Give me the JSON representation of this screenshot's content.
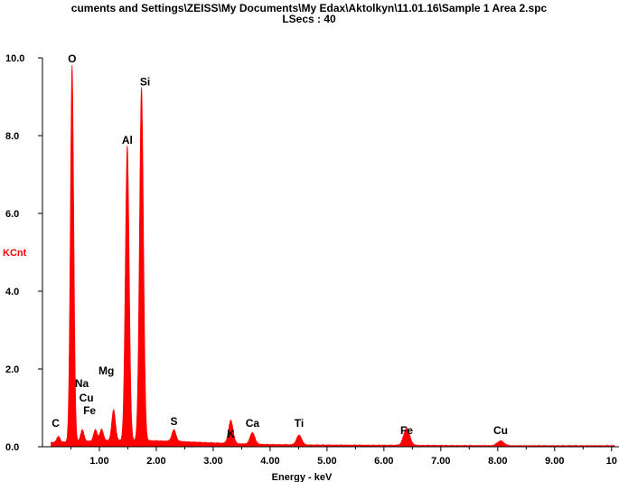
{
  "chart_data": {
    "type": "line",
    "title": "cuments and Settings\\ZEISS\\My Documents\\My Edax\\Aktolkyn\\11.01.16\\Sample 1 Area 2.spc",
    "subtitle": "LSecs : 40",
    "xlabel": "Energy - keV",
    "ylabel": "KCnt",
    "xlim": [
      0,
      10
    ],
    "ylim": [
      0,
      10
    ],
    "series_color": "#ff0000",
    "axis_color": "#000000",
    "ylabel_color": "#ff0000",
    "y_ticks": [
      {
        "value": 0,
        "label": "0.0"
      },
      {
        "value": 2,
        "label": "2.0"
      },
      {
        "value": 4,
        "label": "4.0"
      },
      {
        "value": 6,
        "label": "6.0"
      },
      {
        "value": 8,
        "label": "8.0"
      },
      {
        "value": 10,
        "label": "10.0"
      }
    ],
    "x_ticks": [
      {
        "value": 1,
        "label": "1.00"
      },
      {
        "value": 2,
        "label": "2.00"
      },
      {
        "value": 3,
        "label": "3.00"
      },
      {
        "value": 4,
        "label": "4.00"
      },
      {
        "value": 5,
        "label": "5.00"
      },
      {
        "value": 6,
        "label": "6.00"
      },
      {
        "value": 7,
        "label": "7.00"
      },
      {
        "value": 8,
        "label": "8.00"
      },
      {
        "value": 9,
        "label": "9.00"
      },
      {
        "value": 10,
        "label": "10"
      }
    ],
    "peaks": [
      {
        "element": "C",
        "energy": 0.28,
        "height": 0.15
      },
      {
        "element": "O",
        "energy": 0.52,
        "height": 9.7
      },
      {
        "element": "Fe",
        "energy": 0.7,
        "height": 0.3
      },
      {
        "element": "Cu",
        "energy": 0.93,
        "height": 0.3
      },
      {
        "element": "Na",
        "energy": 1.04,
        "height": 0.3
      },
      {
        "element": "Mg",
        "energy": 1.25,
        "height": 0.8
      },
      {
        "element": "Al",
        "energy": 1.49,
        "height": 7.6
      },
      {
        "element": "Si",
        "energy": 1.74,
        "height": 9.1
      },
      {
        "element": "S",
        "energy": 2.31,
        "height": 0.3
      },
      {
        "element": "K",
        "energy": 3.31,
        "height": 0.6
      },
      {
        "element": "Ca",
        "energy": 3.69,
        "height": 0.3
      },
      {
        "element": "Ti",
        "energy": 4.51,
        "height": 0.25
      },
      {
        "element": "Fe",
        "energy": 6.4,
        "height": 0.45
      },
      {
        "element": "Cu",
        "energy": 8.05,
        "height": 0.12
      }
    ],
    "grid": false,
    "legend": "none"
  }
}
